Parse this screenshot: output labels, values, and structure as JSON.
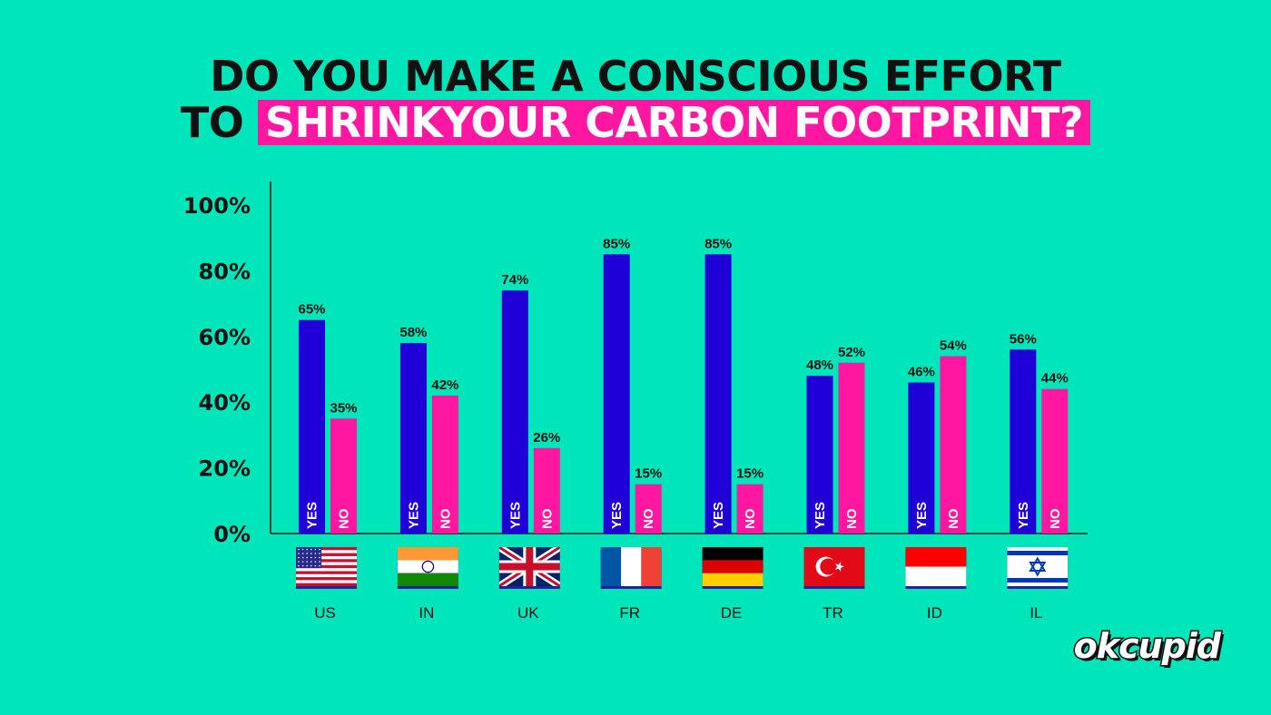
{
  "title_line1": "DO YOU MAKE A CONSCIOUS EFFORT",
  "title_line2_prefix": "TO",
  "title_line2_highlight": "SHRINKYOUR CARBON FOOTPRINT?",
  "logo": "okcupid",
  "colors": {
    "background": "#00e5b9",
    "yes": "#1f00d6",
    "no": "#ff17a2",
    "title_highlight": "#ff17a2"
  },
  "chart_data": {
    "type": "bar",
    "categories": [
      "US",
      "IN",
      "UK",
      "FR",
      "DE",
      "TR",
      "ID",
      "IL"
    ],
    "series": [
      {
        "name": "YES",
        "values": [
          65,
          58,
          74,
          85,
          85,
          48,
          46,
          56
        ],
        "labels": [
          "65%",
          "58%",
          "74%",
          "85%",
          "85%",
          "48%",
          "46%",
          "56%"
        ]
      },
      {
        "name": "NO",
        "values": [
          35,
          42,
          26,
          15,
          15,
          52,
          54,
          44
        ],
        "labels": [
          "35%",
          "42%",
          "26%",
          "15%",
          "15%",
          "52%",
          "54%",
          "44%"
        ]
      }
    ],
    "y_ticks": [
      "0%",
      "20%",
      "40%",
      "60%",
      "80%",
      "100%"
    ],
    "ylim": [
      0,
      100
    ],
    "flags": [
      "us-flag-icon",
      "in-flag-icon",
      "uk-flag-icon",
      "fr-flag-icon",
      "de-flag-icon",
      "tr-flag-icon",
      "id-flag-icon",
      "il-flag-icon"
    ],
    "grid": false,
    "legend": "none"
  }
}
